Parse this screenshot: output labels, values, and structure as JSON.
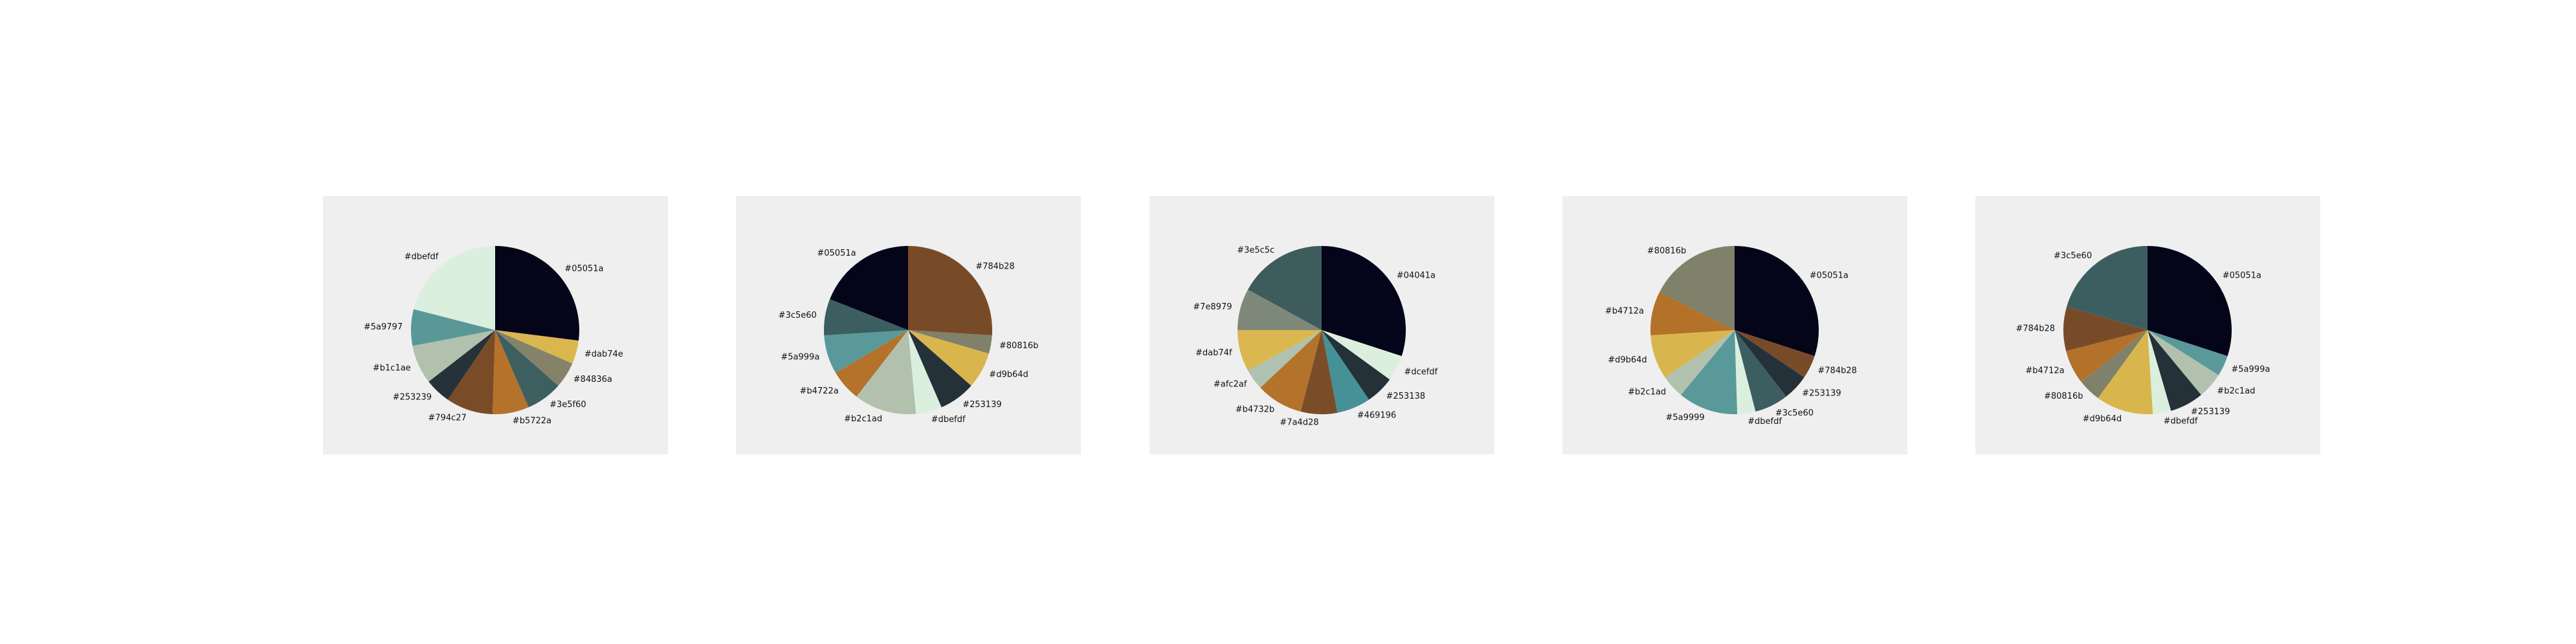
{
  "chart_data": [
    {
      "type": "pie",
      "start_angle_deg": 90,
      "direction": "clockwise",
      "slices": [
        {
          "label": "#05051a",
          "value": 27.0,
          "color": "#05051a"
        },
        {
          "label": "#dab74e",
          "value": 4.5,
          "color": "#dab74e"
        },
        {
          "label": "#84836a",
          "value": 5.0,
          "color": "#84836a"
        },
        {
          "label": "#3e5f60",
          "value": 7.0,
          "color": "#3e5f60"
        },
        {
          "label": "#b5722a",
          "value": 7.0,
          "color": "#b5722a"
        },
        {
          "label": "#794c27",
          "value": 9.0,
          "color": "#794c27"
        },
        {
          "label": "#253239",
          "value": 5.0,
          "color": "#253239"
        },
        {
          "label": "#b1c1ae",
          "value": 7.5,
          "color": "#b1c1ae"
        },
        {
          "label": "#5a9797",
          "value": 7.0,
          "color": "#5a9797"
        },
        {
          "label": "#dbefdf",
          "value": 21.0,
          "color": "#dbefdf"
        }
      ]
    },
    {
      "type": "pie",
      "start_angle_deg": 90,
      "direction": "clockwise",
      "slices": [
        {
          "label": "#784b28",
          "value": 26.0,
          "color": "#784b28"
        },
        {
          "label": "#80816b",
          "value": 3.5,
          "color": "#80816b"
        },
        {
          "label": "#d9b64d",
          "value": 7.0,
          "color": "#d9b64d"
        },
        {
          "label": "#253139",
          "value": 7.0,
          "color": "#253139"
        },
        {
          "label": "#dbefdf",
          "value": 5.0,
          "color": "#dbefdf"
        },
        {
          "label": "#b2c1ad",
          "value": 12.0,
          "color": "#b2c1ad"
        },
        {
          "label": "#b4722a",
          "value": 6.0,
          "color": "#b4722a"
        },
        {
          "label": "#5a999a",
          "value": 7.5,
          "color": "#5a999a"
        },
        {
          "label": "#3c5e60",
          "value": 7.0,
          "color": "#3c5e60"
        },
        {
          "label": "#05051a",
          "value": 19.0,
          "color": "#05051a"
        }
      ]
    },
    {
      "type": "pie",
      "start_angle_deg": 90,
      "direction": "clockwise",
      "slices": [
        {
          "label": "#04041a",
          "value": 30.0,
          "color": "#04041a"
        },
        {
          "label": "#dcefdf",
          "value": 5.0,
          "color": "#dcefdf"
        },
        {
          "label": "#253138",
          "value": 5.5,
          "color": "#253138"
        },
        {
          "label": "#469196",
          "value": 6.5,
          "color": "#469196"
        },
        {
          "label": "#7a4d28",
          "value": 7.0,
          "color": "#7a4d28"
        },
        {
          "label": "#b4732b",
          "value": 9.0,
          "color": "#b4732b"
        },
        {
          "label": "#afc2af",
          "value": 4.0,
          "color": "#afc2af"
        },
        {
          "label": "#dab74f",
          "value": 8.0,
          "color": "#dab74f"
        },
        {
          "label": "#7e8979",
          "value": 8.0,
          "color": "#7e8979"
        },
        {
          "label": "#3e5c5c",
          "value": 17.0,
          "color": "#3e5c5c"
        }
      ]
    },
    {
      "type": "pie",
      "start_angle_deg": 90,
      "direction": "clockwise",
      "slices": [
        {
          "label": "#05051a",
          "value": 30.0,
          "color": "#05051a"
        },
        {
          "label": "#784b28",
          "value": 4.5,
          "color": "#784b28"
        },
        {
          "label": "#253139",
          "value": 5.0,
          "color": "#253139"
        },
        {
          "label": "#3c5e60",
          "value": 6.5,
          "color": "#3c5e60"
        },
        {
          "label": "#dbefdf",
          "value": 3.5,
          "color": "#dbefdf"
        },
        {
          "label": "#5a9999",
          "value": 11.5,
          "color": "#5a9999"
        },
        {
          "label": "#b2c1ad",
          "value": 4.5,
          "color": "#b2c1ad"
        },
        {
          "label": "#d9b64d",
          "value": 8.5,
          "color": "#d9b64d"
        },
        {
          "label": "#b4712a",
          "value": 8.5,
          "color": "#b4712a"
        },
        {
          "label": "#80816b",
          "value": 17.5,
          "color": "#80816b"
        }
      ]
    },
    {
      "type": "pie",
      "start_angle_deg": 90,
      "direction": "clockwise",
      "slices": [
        {
          "label": "#05051a",
          "value": 30.0,
          "color": "#05051a"
        },
        {
          "label": "#5a999a",
          "value": 4.0,
          "color": "#5a999a"
        },
        {
          "label": "#b2c1ad",
          "value": 5.0,
          "color": "#b2c1ad"
        },
        {
          "label": "#253139",
          "value": 6.5,
          "color": "#253139"
        },
        {
          "label": "#dbefdf",
          "value": 3.5,
          "color": "#dbefdf"
        },
        {
          "label": "#d9b64d",
          "value": 11.0,
          "color": "#d9b64d"
        },
        {
          "label": "#80816b",
          "value": 4.5,
          "color": "#80816b"
        },
        {
          "label": "#b4712a",
          "value": 6.5,
          "color": "#b4712a"
        },
        {
          "label": "#784b28",
          "value": 8.5,
          "color": "#784b28"
        },
        {
          "label": "#3c5e60",
          "value": 20.5,
          "color": "#3c5e60"
        }
      ]
    }
  ]
}
